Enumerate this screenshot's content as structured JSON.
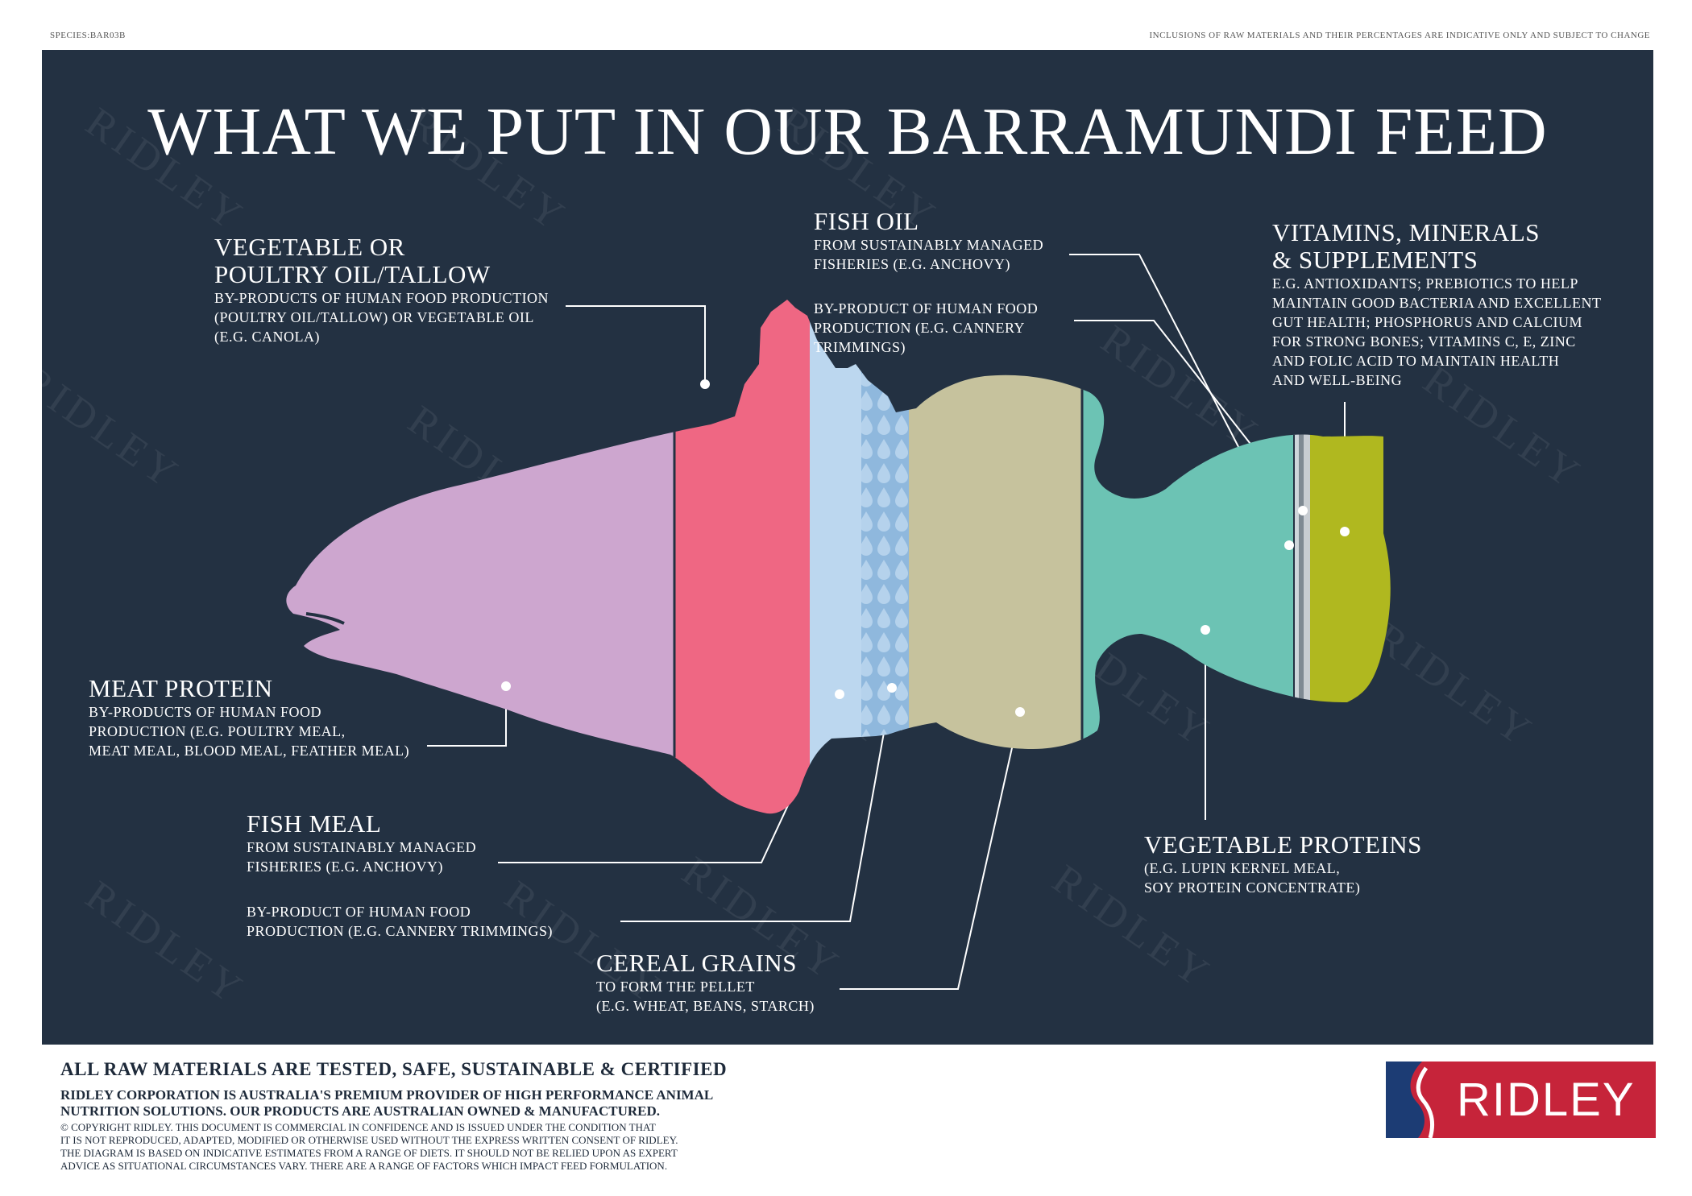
{
  "header": {
    "species": "SPECIES:BAR03B",
    "disclaimer": "INCLUSIONS OF RAW MATERIALS AND THEIR PERCENTAGES ARE INDICATIVE ONLY AND SUBJECT TO CHANGE"
  },
  "title": "WHAT WE PUT IN OUR BARRAMUNDI FEED",
  "watermark": "RIDLEY",
  "labels": {
    "tallow": {
      "heading": "VEGETABLE OR\nPOULTRY OIL/TALLOW",
      "desc": "BY-PRODUCTS OF HUMAN FOOD PRODUCTION\n(POULTRY OIL/TALLOW) OR VEGETABLE OIL\n(E.G. CANOLA)"
    },
    "fish_oil": {
      "heading": "FISH OIL",
      "desc": "FROM SUSTAINABLY MANAGED\nFISHERIES (E.G. ANCHOVY)",
      "desc2": "BY-PRODUCT OF HUMAN FOOD\nPRODUCTION (E.G. CANNERY\nTRIMMINGS)"
    },
    "vitamins": {
      "heading": "VITAMINS, MINERALS\n& SUPPLEMENTS",
      "desc": "E.G. ANTIOXIDANTS; PREBIOTICS TO HELP\nMAINTAIN GOOD BACTERIA AND EXCELLENT\nGUT HEALTH; PHOSPHORUS AND CALCIUM\nFOR STRONG BONES; VITAMINS C, E, ZINC\nAND FOLIC ACID TO MAINTAIN HEALTH\nAND WELL-BEING"
    },
    "meat_protein": {
      "heading": "MEAT PROTEIN",
      "desc": "BY-PRODUCTS OF HUMAN FOOD\nPRODUCTION (E.G. POULTRY MEAL,\nMEAT MEAL, BLOOD MEAL, FEATHER MEAL)"
    },
    "fish_meal": {
      "heading": "FISH MEAL",
      "desc": "FROM SUSTAINABLY MANAGED\nFISHERIES (E.G. ANCHOVY)",
      "desc2": "BY-PRODUCT OF HUMAN FOOD\nPRODUCTION (E.G. CANNERY TRIMMINGS)"
    },
    "cereal_grains": {
      "heading": "CEREAL GRAINS",
      "desc": "TO FORM THE PELLET\n(E.G. WHEAT, BEANS, STARCH)"
    },
    "veg_proteins": {
      "heading": "VEGETABLE PROTEINS",
      "desc": "(E.G. LUPIN KERNEL MEAL,\nSOY PROTEIN CONCENTRATE)"
    }
  },
  "colors": {
    "panel": "#233142",
    "meat_protein": "#cda6cf",
    "tallow": "#ef6783",
    "fish_oil": "#bcd7ef",
    "fish_meal": "#8fb8dd",
    "cereal_grains": "#c6c29d",
    "veg_proteins": "#6cc3b4",
    "supplements": "#b0b81f",
    "logo_red": "#c6243a",
    "logo_blue": "#1c3c74"
  },
  "footer": {
    "heading": "ALL RAW MATERIALS ARE TESTED, SAFE, SUSTAINABLE & CERTIFIED",
    "sub": "RIDLEY CORPORATION IS AUSTRALIA'S PREMIUM PROVIDER OF HIGH PERFORMANCE ANIMAL\nNUTRITION SOLUTIONS. OUR PRODUCTS ARE AUSTRALIAN OWNED & MANUFACTURED.",
    "copyright": "© COPYRIGHT RIDLEY.  THIS DOCUMENT IS COMMERCIAL IN CONFIDENCE AND IS ISSUED UNDER THE CONDITION THAT\nIT IS NOT REPRODUCED, ADAPTED, MODIFIED OR OTHERWISE USED WITHOUT THE EXPRESS WRITTEN CONSENT OF RIDLEY.\nTHE DIAGRAM IS BASED ON INDICATIVE ESTIMATES FROM A RANGE OF DIETS. IT SHOULD NOT BE RELIED UPON AS EXPERT\nADVICE AS SITUATIONAL CIRCUMSTANCES VARY.  THERE ARE A RANGE OF FACTORS WHICH IMPACT FEED FORMULATION."
  },
  "logo": {
    "text": "RIDLEY"
  }
}
